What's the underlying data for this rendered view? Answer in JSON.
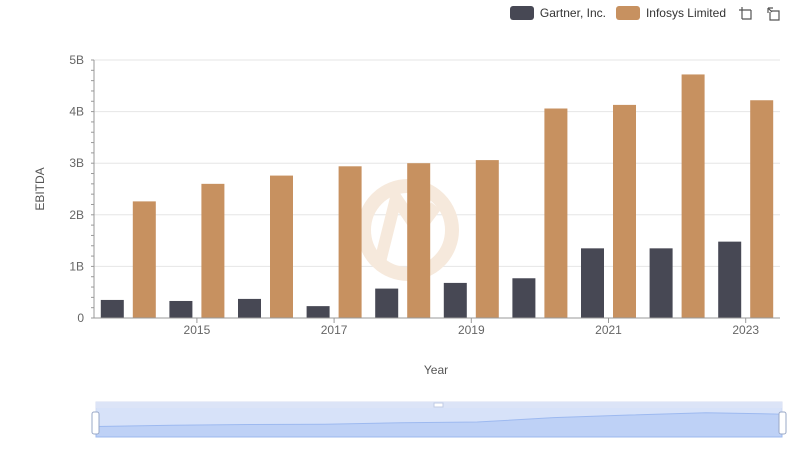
{
  "chart_data": {
    "type": "bar",
    "title": "",
    "xlabel": "Year",
    "ylabel": "EBITDA",
    "x": [
      2014,
      2015,
      2016,
      2017,
      2018,
      2019,
      2020,
      2021,
      2022,
      2023
    ],
    "x_tick_labels": [
      "2015",
      "2017",
      "2019",
      "2021",
      "2023"
    ],
    "y_tick_labels": [
      "0",
      "1B",
      "2B",
      "3B",
      "4B",
      "5B"
    ],
    "ylim": [
      0,
      5000000000
    ],
    "grid": true,
    "legend_position": "top-right",
    "series": [
      {
        "name": "Gartner, Inc.",
        "color": "#474854",
        "values": [
          350000000,
          330000000,
          370000000,
          230000000,
          570000000,
          680000000,
          770000000,
          1350000000,
          1350000000,
          1480000000
        ]
      },
      {
        "name": "Infosys Limited",
        "color": "#c79160",
        "values": [
          2260000000,
          2600000000,
          2760000000,
          2940000000,
          3000000000,
          3060000000,
          4060000000,
          4130000000,
          4720000000,
          4220000000
        ]
      }
    ]
  },
  "toolbox": {
    "zoom_icon": "zoom-icon",
    "restore_icon": "restore-icon"
  }
}
